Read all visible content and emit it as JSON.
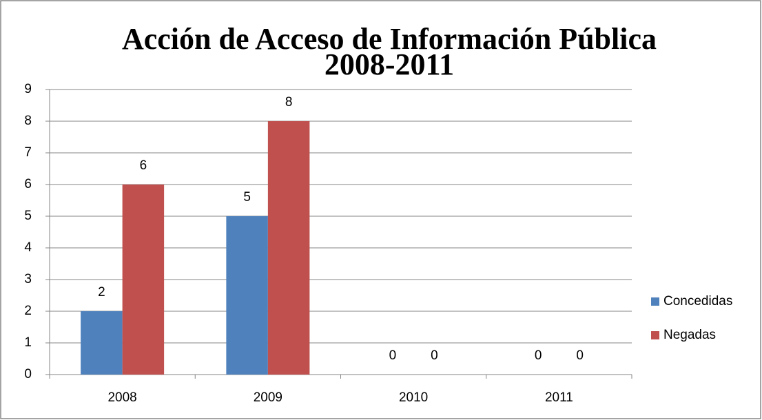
{
  "chart_data": {
    "type": "bar",
    "title": "Acción de Acceso de Información Pública 2008-2011",
    "categories": [
      "2008",
      "2009",
      "2010",
      "2011"
    ],
    "series": [
      {
        "name": "Concedidas",
        "color": "#4f81bd",
        "values": [
          2,
          5,
          0,
          0
        ]
      },
      {
        "name": "Negadas",
        "color": "#c0504d",
        "values": [
          6,
          8,
          0,
          0
        ]
      }
    ],
    "ylim": [
      0,
      9
    ],
    "yticks": [
      0,
      1,
      2,
      3,
      4,
      5,
      6,
      7,
      8,
      9
    ],
    "grid": true,
    "legend": "right"
  }
}
